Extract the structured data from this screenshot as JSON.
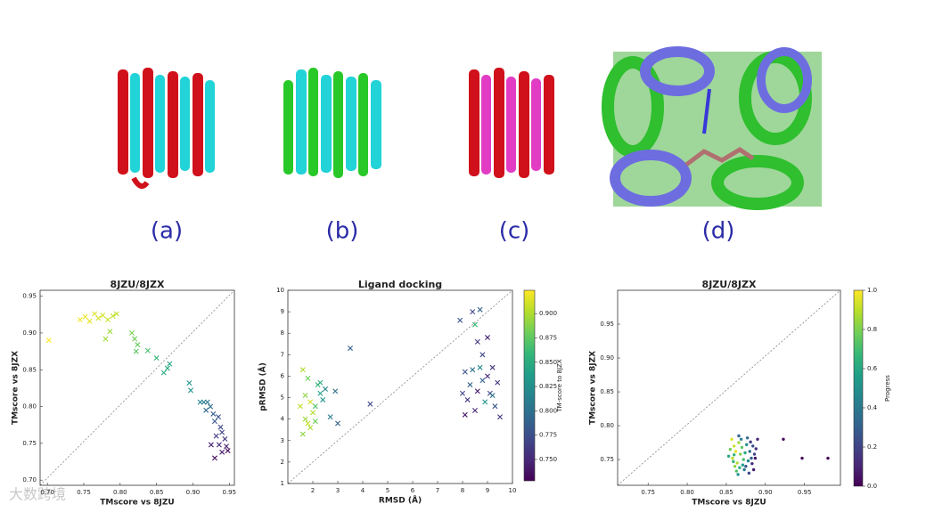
{
  "panel_labels": [
    "(a)",
    "(b)",
    "(c)",
    "(d)"
  ],
  "watermark": "大数跨境",
  "chart_data": [
    {
      "type": "scatter",
      "title": "8JZU/8JZX",
      "x_label": "TMscore vs 8JZU",
      "y_label": "TMscore vs 8JZX",
      "marker": "x",
      "colormap": "viridis",
      "clim": [
        0,
        1
      ],
      "xlim": [
        0.69,
        0.957
      ],
      "ylim": [
        0.693,
        0.958
      ],
      "xticks": [
        {
          "value": 0.7,
          "label": "0.70"
        },
        0.75,
        {
          "value": 0.8,
          "label": "0.80"
        },
        0.85,
        {
          "value": 0.9,
          "label": "0.90"
        },
        0.95
      ],
      "yticks": [
        {
          "value": 0.7,
          "label": "0.70"
        },
        0.75,
        {
          "value": 0.8,
          "label": "0.80"
        },
        0.85,
        {
          "value": 0.9,
          "label": "0.90"
        },
        0.95
      ],
      "x": [
        0.702,
        0.745,
        0.752,
        0.758,
        0.765,
        0.77,
        0.776,
        0.783,
        0.79,
        0.795,
        0.78,
        0.786,
        0.816,
        0.82,
        0.824,
        0.822,
        0.838,
        0.85,
        0.86,
        0.865,
        0.868,
        0.895,
        0.897,
        0.91,
        0.915,
        0.92,
        0.924,
        0.918,
        0.928,
        0.93,
        0.935,
        0.938,
        0.94,
        0.932,
        0.944,
        0.936,
        0.946,
        0.925,
        0.94,
        0.93,
        0.948
      ],
      "y": [
        0.89,
        0.918,
        0.922,
        0.916,
        0.926,
        0.92,
        0.924,
        0.918,
        0.923,
        0.926,
        0.892,
        0.902,
        0.9,
        0.892,
        0.884,
        0.875,
        0.876,
        0.866,
        0.846,
        0.852,
        0.858,
        0.832,
        0.822,
        0.806,
        0.806,
        0.806,
        0.8,
        0.795,
        0.79,
        0.78,
        0.786,
        0.772,
        0.765,
        0.76,
        0.756,
        0.748,
        0.746,
        0.748,
        0.738,
        0.73,
        0.74
      ],
      "c": [
        1.0,
        0.98,
        0.97,
        0.96,
        0.95,
        0.94,
        0.93,
        0.92,
        0.91,
        0.9,
        0.86,
        0.85,
        0.8,
        0.78,
        0.76,
        0.74,
        0.7,
        0.66,
        0.62,
        0.6,
        0.58,
        0.52,
        0.5,
        0.44,
        0.42,
        0.4,
        0.36,
        0.34,
        0.3,
        0.28,
        0.26,
        0.22,
        0.2,
        0.18,
        0.14,
        0.12,
        0.1,
        0.08,
        0.06,
        0.04,
        0.02
      ]
    },
    {
      "type": "scatter",
      "title": "Ligand docking",
      "x_label": "RMSD (Å)",
      "y_label": "pRMSD (Å)",
      "marker": "x",
      "colormap": "viridis",
      "colorbar_label": "TM-score to 8JZX",
      "xlim": [
        1,
        10
      ],
      "ylim": [
        1,
        10
      ],
      "xticks": [
        2,
        3,
        4,
        5,
        6,
        7,
        8,
        9,
        10
      ],
      "yticks": [
        1,
        2,
        3,
        4,
        5,
        6,
        7,
        8,
        9,
        10
      ],
      "clim": [
        0.728,
        0.924
      ],
      "cticks": [
        {
          "value": 0.75,
          "label": "0.750"
        },
        {
          "value": 0.775,
          "label": "0.775"
        },
        {
          "value": 0.8,
          "label": "0.800"
        },
        {
          "value": 0.825,
          "label": "0.825"
        },
        {
          "value": 0.85,
          "label": "0.850"
        },
        {
          "value": 0.875,
          "label": "0.875"
        },
        {
          "value": 0.9,
          "label": "0.900"
        }
      ],
      "x": [
        1.6,
        1.8,
        1.7,
        1.9,
        1.5,
        2.0,
        1.7,
        1.9,
        1.6,
        2.1,
        2.2,
        2.3,
        2.4,
        2.1,
        2.5,
        2.7,
        2.9,
        3.0,
        2.3,
        1.8,
        3.5,
        4.3,
        8.5,
        7.9,
        8.4,
        8.7,
        8.6,
        9.0,
        8.8,
        9.2,
        8.1,
        8.4,
        8.7,
        9.0,
        9.4,
        8.3,
        8.6,
        9.1,
        8.9,
        8.2,
        8.5,
        9.3,
        9.5,
        8.1,
        8.8,
        9.2,
        8.0
      ],
      "y": [
        6.3,
        5.9,
        5.1,
        4.8,
        4.6,
        4.3,
        4.0,
        3.6,
        3.3,
        3.9,
        5.6,
        5.2,
        4.9,
        4.6,
        5.4,
        4.1,
        5.3,
        3.8,
        5.7,
        3.8,
        7.3,
        4.7,
        8.4,
        8.6,
        9.0,
        9.1,
        7.6,
        7.8,
        7.0,
        6.4,
        6.2,
        6.3,
        6.4,
        6.0,
        5.7,
        5.6,
        5.3,
        5.2,
        4.8,
        4.9,
        4.4,
        4.6,
        4.1,
        4.2,
        5.8,
        5.1,
        5.2
      ],
      "c": [
        0.9,
        0.88,
        0.89,
        0.91,
        0.905,
        0.9,
        0.895,
        0.9,
        0.89,
        0.88,
        0.86,
        0.84,
        0.83,
        0.87,
        0.82,
        0.81,
        0.8,
        0.79,
        0.85,
        0.905,
        0.79,
        0.77,
        0.86,
        0.78,
        0.77,
        0.79,
        0.76,
        0.75,
        0.77,
        0.76,
        0.78,
        0.8,
        0.82,
        0.75,
        0.76,
        0.79,
        0.74,
        0.77,
        0.83,
        0.76,
        0.75,
        0.78,
        0.76,
        0.74,
        0.79,
        0.8,
        0.77
      ]
    },
    {
      "type": "scatter",
      "title": "8JZU/8JZX",
      "x_label": "TMscore vs 8JZU",
      "y_label": "TMscore vs 8JZX",
      "marker": "o",
      "colormap": "viridis",
      "colorbar_label": "Progress",
      "xlim": [
        0.711,
        0.996
      ],
      "ylim": [
        0.712,
        1.0
      ],
      "xticks": [
        0.75,
        {
          "value": 0.8,
          "label": "0.80"
        },
        0.85,
        {
          "value": 0.9,
          "label": "0.90"
        },
        0.95
      ],
      "yticks": [
        0.75,
        {
          "value": 0.8,
          "label": "0.80"
        },
        0.85,
        {
          "value": 0.9,
          "label": "0.90"
        },
        0.95
      ],
      "clim": [
        0,
        1
      ],
      "cticks": [
        {
          "value": 0,
          "label": "0.0"
        },
        0.2,
        0.4,
        0.6,
        0.8,
        {
          "value": 1,
          "label": "1.0"
        }
      ],
      "x": [
        0.857,
        0.86,
        0.862,
        0.858,
        0.864,
        0.866,
        0.861,
        0.868,
        0.855,
        0.87,
        0.863,
        0.872,
        0.859,
        0.867,
        0.874,
        0.853,
        0.871,
        0.865,
        0.876,
        0.878,
        0.869,
        0.873,
        0.88,
        0.877,
        0.882,
        0.875,
        0.884,
        0.879,
        0.886,
        0.881,
        0.888,
        0.883,
        0.89,
        0.885,
        0.887,
        0.866,
        0.86,
        0.923,
        0.947,
        0.98
      ],
      "y": [
        0.78,
        0.77,
        0.762,
        0.752,
        0.745,
        0.775,
        0.74,
        0.758,
        0.765,
        0.768,
        0.733,
        0.75,
        0.747,
        0.738,
        0.76,
        0.755,
        0.742,
        0.728,
        0.772,
        0.748,
        0.78,
        0.735,
        0.762,
        0.782,
        0.752,
        0.74,
        0.77,
        0.73,
        0.758,
        0.776,
        0.766,
        0.744,
        0.78,
        0.735,
        0.752,
        0.785,
        0.757,
        0.78,
        0.752,
        0.752
      ],
      "c": [
        0.95,
        0.92,
        0.97,
        0.9,
        0.88,
        0.85,
        0.82,
        0.8,
        0.78,
        0.75,
        0.72,
        0.7,
        0.66,
        0.62,
        0.6,
        0.58,
        0.55,
        0.52,
        0.5,
        0.46,
        0.44,
        0.4,
        0.36,
        0.34,
        0.3,
        0.28,
        0.24,
        0.22,
        0.2,
        0.18,
        0.14,
        0.12,
        0.1,
        0.08,
        0.06,
        0.3,
        0.65,
        0.02,
        0.01,
        0.0
      ]
    }
  ]
}
